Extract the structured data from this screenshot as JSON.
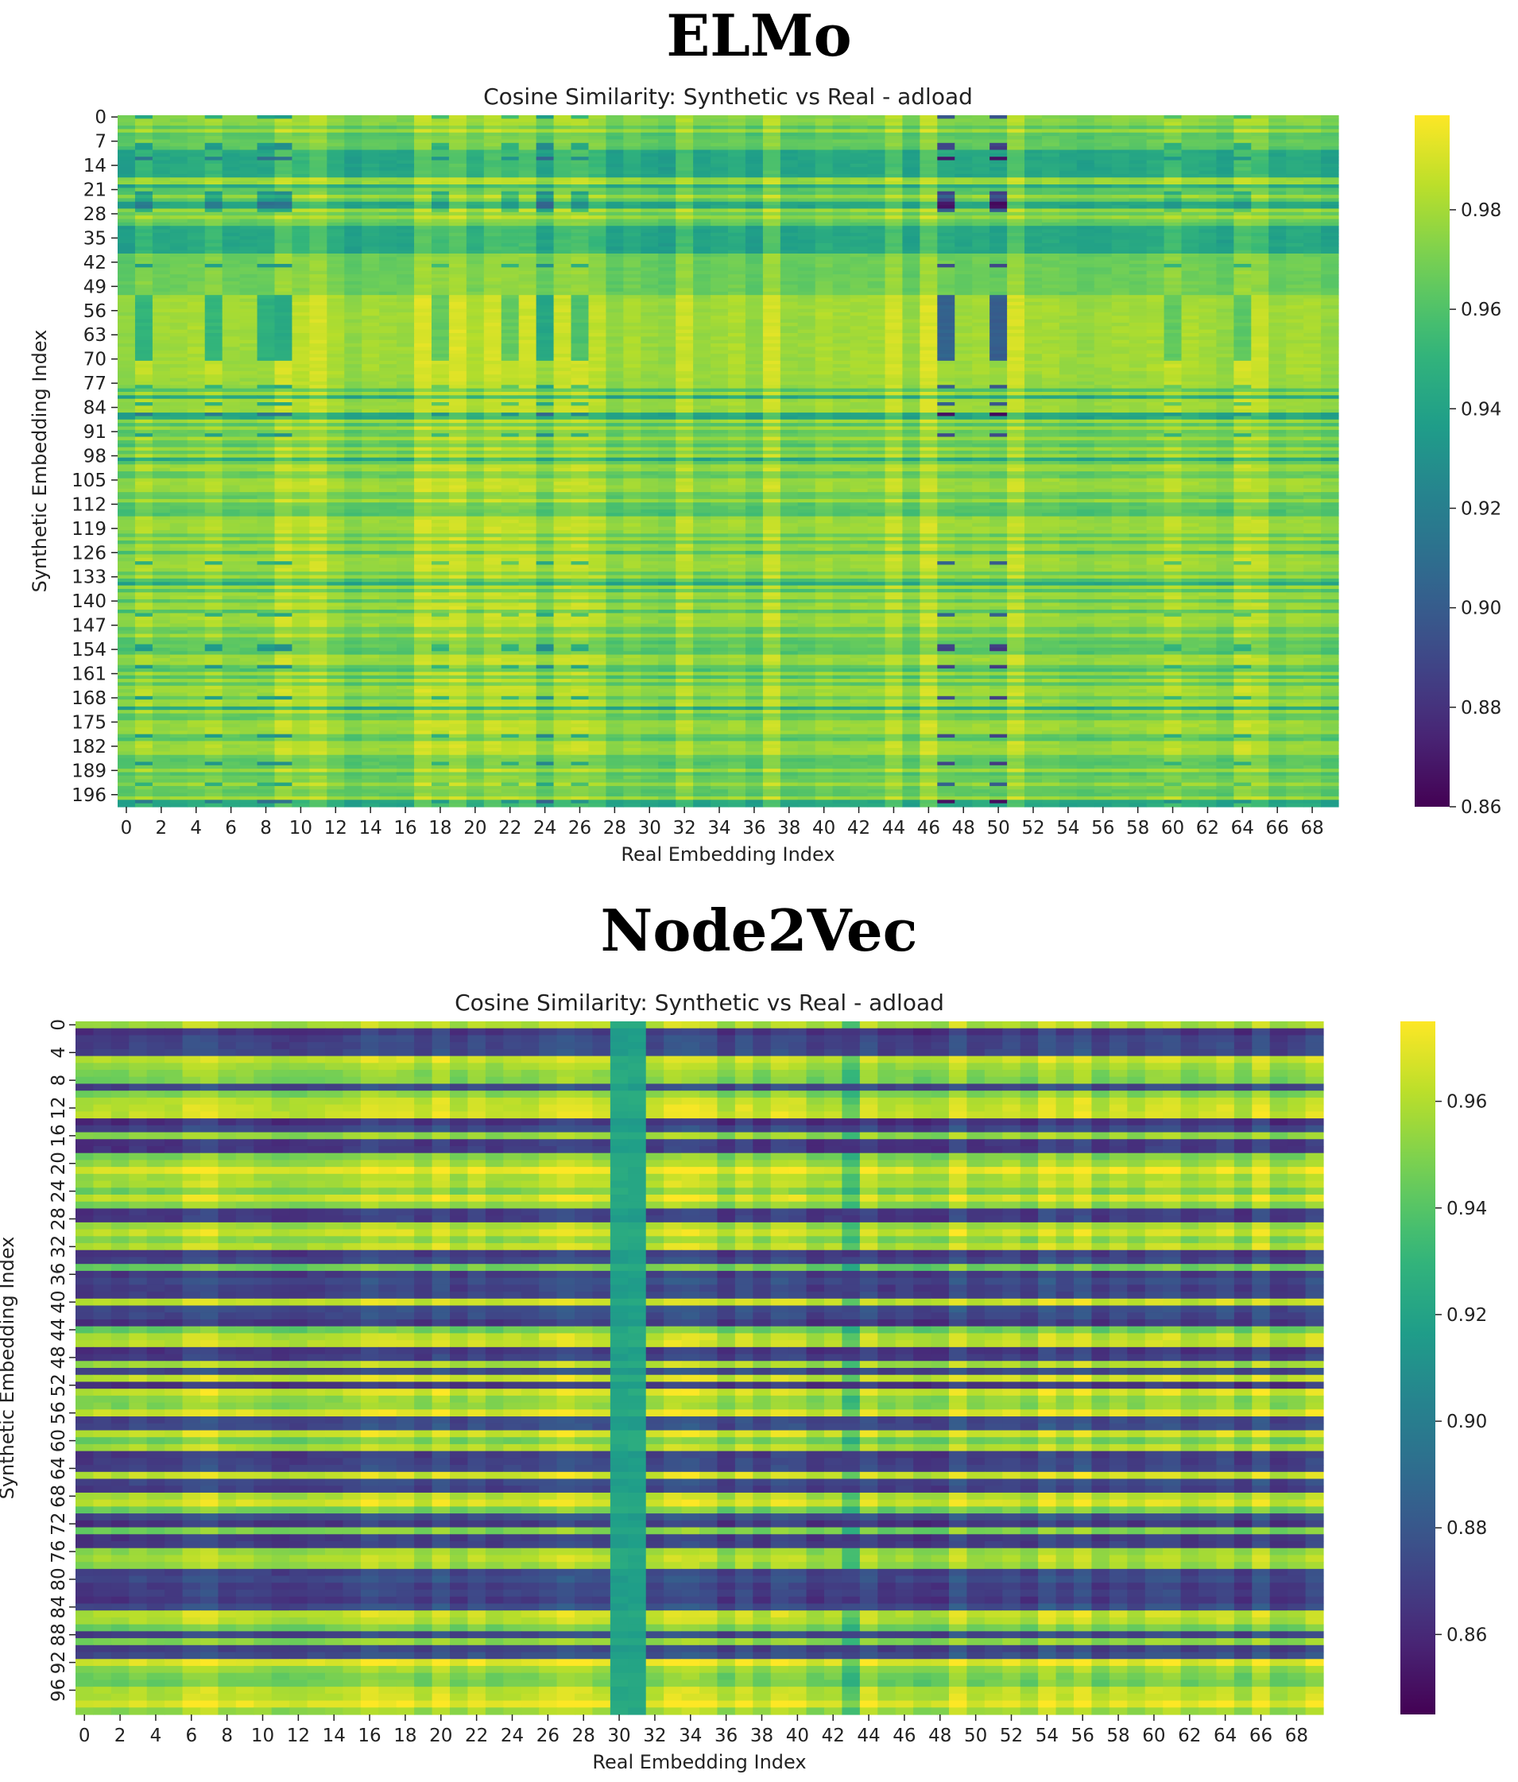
{
  "panels": [
    {
      "name": "ELMo",
      "chart_data": {
        "type": "heatmap",
        "title": "Cosine Similarity: Synthetic vs Real - adload",
        "xlabel": "Real Embedding Index",
        "ylabel": "Synthetic Embedding Index",
        "n_cols": 70,
        "n_rows": 200,
        "x_ticks": [
          "0",
          "2",
          "4",
          "6",
          "8",
          "10",
          "12",
          "14",
          "16",
          "18",
          "20",
          "22",
          "24",
          "26",
          "28",
          "30",
          "32",
          "34",
          "36",
          "38",
          "40",
          "42",
          "44",
          "46",
          "48",
          "50",
          "52",
          "54",
          "56",
          "58",
          "60",
          "62",
          "64",
          "66",
          "68"
        ],
        "y_ticks": [
          "0",
          "7",
          "14",
          "21",
          "28",
          "35",
          "42",
          "49",
          "56",
          "63",
          "70",
          "77",
          "84",
          "91",
          "98",
          "105",
          "112",
          "119",
          "126",
          "133",
          "140",
          "147",
          "154",
          "161",
          "168",
          "175",
          "182",
          "189",
          "196"
        ],
        "y_tick_step": 7,
        "colorbar": {
          "min": 0.86,
          "max": 0.999,
          "ticks": [
            "0.86",
            "0.88",
            "0.90",
            "0.92",
            "0.94",
            "0.96",
            "0.98"
          ]
        },
        "colormap": "viridis",
        "value_range": [
          0.86,
          0.999
        ]
      }
    },
    {
      "name": "Node2Vec",
      "chart_data": {
        "type": "heatmap",
        "title": "Cosine Similarity: Synthetic vs Real - adload",
        "xlabel": "Real Embedding Index",
        "ylabel": "Synthetic Embedding Index",
        "n_cols": 70,
        "n_rows": 100,
        "x_ticks": [
          "0",
          "2",
          "4",
          "6",
          "8",
          "10",
          "12",
          "14",
          "16",
          "18",
          "20",
          "22",
          "24",
          "26",
          "28",
          "30",
          "32",
          "34",
          "36",
          "38",
          "40",
          "42",
          "44",
          "46",
          "48",
          "50",
          "52",
          "54",
          "56",
          "58",
          "60",
          "62",
          "64",
          "66",
          "68"
        ],
        "y_ticks": [
          "0",
          "4",
          "8",
          "12",
          "16",
          "20",
          "24",
          "28",
          "32",
          "36",
          "40",
          "44",
          "48",
          "52",
          "56",
          "60",
          "64",
          "68",
          "72",
          "76",
          "80",
          "84",
          "88",
          "92",
          "96"
        ],
        "y_tick_step": 4,
        "colorbar": {
          "min": 0.845,
          "max": 0.975,
          "ticks": [
            "0.86",
            "0.88",
            "0.90",
            "0.92",
            "0.94",
            "0.96"
          ]
        },
        "colormap": "viridis",
        "value_range": [
          0.845,
          0.975
        ]
      }
    }
  ],
  "colors": {
    "viridis_low": "#440154",
    "viridis_mid": "#21918c",
    "viridis_high": "#fde725"
  }
}
